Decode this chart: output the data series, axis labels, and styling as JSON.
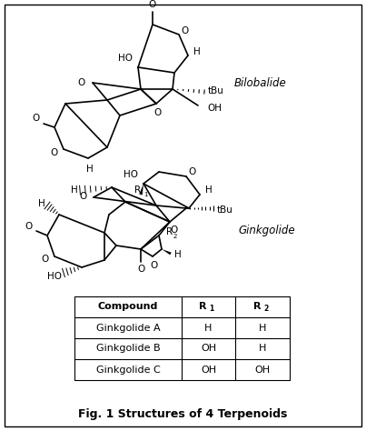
{
  "title": "Fig. 1 Structures of 4 Terpenoids",
  "bilobalide_label": "Bilobalide",
  "ginkgolide_label": "Ginkgolide",
  "table_header": [
    "Compound",
    "R1",
    "R2"
  ],
  "table_rows": [
    [
      "Ginkgolide A",
      "H",
      "H"
    ],
    [
      "Ginkgolide B",
      "OH",
      "H"
    ],
    [
      "Ginkgolide C",
      "OH",
      "OH"
    ]
  ],
  "border_color": "#000000",
  "background_color": "#ffffff",
  "fig_width": 4.03,
  "fig_height": 4.74,
  "dpi": 100
}
